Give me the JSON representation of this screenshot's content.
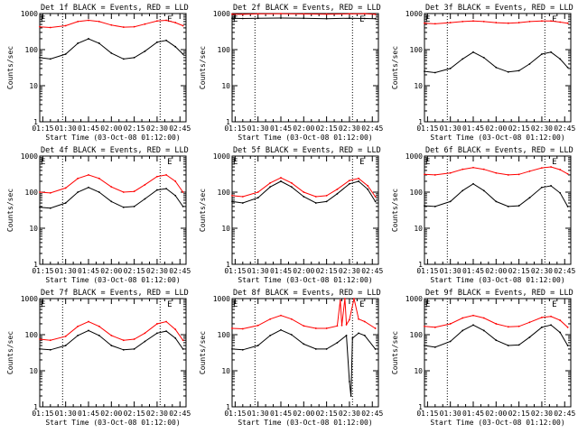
{
  "colors": {
    "events": "#000000",
    "lld": "#ff0000",
    "axis": "#000000",
    "marker": "#000000"
  },
  "chart_data": [
    {
      "type": "line",
      "title": "Det 1f BLACK = Events, RED = LLD",
      "xlabel": "Start Time (03-Oct-08 01:12:00)",
      "ylabel": "Counts/sec",
      "yscale": "log",
      "ylim": [
        1,
        1000
      ],
      "yticks": [
        "1",
        "10",
        "100",
        "1000"
      ],
      "xlim": [
        "01:13",
        "02:49"
      ],
      "xticks": [
        "01:15",
        "01:30",
        "01:45",
        "02:00",
        "02:15",
        "02:30",
        "02:45"
      ],
      "vlines": [
        "01:28",
        "02:32"
      ],
      "markers": [
        {
          "x": "01:13",
          "label": "E"
        },
        {
          "x": "02:36",
          "label": "E"
        }
      ],
      "series": [
        {
          "color": "black",
          "x": [
            "01:13",
            "01:20",
            "01:30",
            "01:38",
            "01:45",
            "01:52",
            "02:00",
            "02:08",
            "02:15",
            "02:22",
            "02:30",
            "02:36",
            "02:42",
            "02:47"
          ],
          "values": [
            60,
            55,
            75,
            150,
            200,
            150,
            80,
            55,
            60,
            90,
            160,
            180,
            120,
            75
          ]
        },
        {
          "color": "red",
          "x": [
            "01:13",
            "01:20",
            "01:30",
            "01:38",
            "01:45",
            "01:52",
            "02:00",
            "02:08",
            "02:15",
            "02:22",
            "02:30",
            "02:36",
            "02:42",
            "02:47"
          ],
          "values": [
            430,
            410,
            460,
            600,
            650,
            600,
            480,
            420,
            430,
            510,
            620,
            650,
            560,
            460
          ]
        }
      ]
    },
    {
      "type": "line",
      "title": "Det 2f BLACK = Events, RED = LLD",
      "xlabel": "Start Time (03-Oct-08 01:12:00)",
      "ylabel": "Counts/sec",
      "yscale": "log",
      "ylim": [
        1,
        1000
      ],
      "yticks": [
        "1",
        "10",
        "100",
        "1000"
      ],
      "xlim": [
        "01:13",
        "02:49"
      ],
      "xticks": [
        "01:15",
        "01:30",
        "01:45",
        "02:00",
        "02:15",
        "02:30",
        "02:45"
      ],
      "vlines": [
        "01:28",
        "02:32"
      ],
      "markers": [
        {
          "x": "01:13",
          "label": "E"
        },
        {
          "x": "02:36",
          "label": "E"
        }
      ],
      "series": [
        {
          "color": "black",
          "x": [
            "01:13",
            "01:20",
            "01:30",
            "01:45",
            "02:00",
            "02:15",
            "02:30",
            "02:40",
            "02:47"
          ],
          "values": [
            740,
            730,
            740,
            750,
            740,
            720,
            740,
            730,
            720
          ]
        },
        {
          "color": "red",
          "x": [
            "01:13",
            "01:20",
            "01:30",
            "01:45",
            "02:00",
            "02:15",
            "02:30",
            "02:40",
            "02:47"
          ],
          "values": [
            960,
            950,
            980,
            990,
            970,
            960,
            980,
            990,
            950
          ]
        }
      ]
    },
    {
      "type": "line",
      "title": "Det 3f BLACK = Events, RED = LLD",
      "xlabel": "Start Time (03-Oct-08 01:12:00)",
      "ylabel": "Counts/sec",
      "yscale": "log",
      "ylim": [
        1,
        1000
      ],
      "yticks": [
        "1",
        "10",
        "100",
        "1000"
      ],
      "xlim": [
        "01:13",
        "02:49"
      ],
      "xticks": [
        "01:15",
        "01:30",
        "01:45",
        "02:00",
        "02:15",
        "02:30",
        "02:45"
      ],
      "vlines": [
        "01:28",
        "02:32"
      ],
      "markers": [
        {
          "x": "01:13",
          "label": "E"
        },
        {
          "x": "02:36",
          "label": "E"
        }
      ],
      "series": [
        {
          "color": "black",
          "x": [
            "01:13",
            "01:20",
            "01:30",
            "01:38",
            "01:45",
            "01:52",
            "02:00",
            "02:08",
            "02:15",
            "02:22",
            "02:30",
            "02:36",
            "02:42",
            "02:47"
          ],
          "values": [
            25,
            23,
            30,
            55,
            85,
            60,
            32,
            24,
            26,
            40,
            75,
            85,
            55,
            32
          ]
        },
        {
          "color": "red",
          "x": [
            "01:13",
            "01:20",
            "01:30",
            "01:38",
            "01:45",
            "01:52",
            "02:00",
            "02:08",
            "02:15",
            "02:22",
            "02:30",
            "02:36",
            "02:42",
            "02:47"
          ],
          "values": [
            540,
            520,
            560,
            600,
            620,
            600,
            560,
            540,
            560,
            600,
            620,
            620,
            580,
            540
          ]
        }
      ]
    },
    {
      "type": "line",
      "title": "Det 4f BLACK = Events, RED = LLD",
      "xlabel": "Start Time (03-Oct-08 01:12:00)",
      "ylabel": "Counts/sec",
      "yscale": "log",
      "ylim": [
        1,
        1000
      ],
      "yticks": [
        "1",
        "10",
        "100",
        "1000"
      ],
      "xlim": [
        "01:13",
        "02:49"
      ],
      "xticks": [
        "01:15",
        "01:30",
        "01:45",
        "02:00",
        "02:15",
        "02:30",
        "02:45"
      ],
      "vlines": [
        "01:28",
        "02:32"
      ],
      "markers": [
        {
          "x": "01:13",
          "label": "E"
        },
        {
          "x": "02:36",
          "label": "E"
        }
      ],
      "series": [
        {
          "color": "black",
          "x": [
            "01:13",
            "01:20",
            "01:30",
            "01:38",
            "01:45",
            "01:52",
            "02:00",
            "02:08",
            "02:15",
            "02:22",
            "02:30",
            "02:36",
            "02:42",
            "02:47"
          ],
          "values": [
            38,
            36,
            50,
            100,
            135,
            100,
            55,
            38,
            40,
            65,
            115,
            125,
            80,
            40
          ]
        },
        {
          "color": "red",
          "x": [
            "01:13",
            "01:20",
            "01:30",
            "01:38",
            "01:45",
            "01:52",
            "02:00",
            "02:08",
            "02:15",
            "02:22",
            "02:30",
            "02:36",
            "02:42",
            "02:47"
          ],
          "values": [
            100,
            95,
            130,
            240,
            300,
            240,
            140,
            100,
            105,
            160,
            270,
            300,
            200,
            100
          ]
        }
      ]
    },
    {
      "type": "line",
      "title": "Det 5f BLACK = Events, RED = LLD",
      "xlabel": "Start Time (03-Oct-08 01:12:00)",
      "ylabel": "Counts/sec",
      "yscale": "log",
      "ylim": [
        1,
        1000
      ],
      "yticks": [
        "1",
        "10",
        "100",
        "1000"
      ],
      "xlim": [
        "01:13",
        "02:49"
      ],
      "xticks": [
        "01:15",
        "01:30",
        "01:45",
        "02:00",
        "02:15",
        "02:30",
        "02:45"
      ],
      "vlines": [
        "01:28",
        "02:32"
      ],
      "markers": [
        {
          "x": "01:13",
          "label": "E"
        },
        {
          "x": "02:36",
          "label": "E"
        }
      ],
      "series": [
        {
          "color": "black",
          "x": [
            "01:13",
            "01:20",
            "01:30",
            "01:38",
            "01:45",
            "01:52",
            "02:00",
            "02:08",
            "02:15",
            "02:22",
            "02:30",
            "02:36",
            "02:42",
            "02:47"
          ],
          "values": [
            55,
            50,
            70,
            140,
            200,
            140,
            75,
            50,
            55,
            90,
            170,
            200,
            120,
            55
          ]
        },
        {
          "color": "red",
          "x": [
            "01:13",
            "01:20",
            "01:30",
            "01:38",
            "01:45",
            "01:52",
            "02:00",
            "02:08",
            "02:15",
            "02:22",
            "02:30",
            "02:36",
            "02:42",
            "02:47"
          ],
          "values": [
            80,
            75,
            100,
            180,
            250,
            180,
            100,
            75,
            80,
            120,
            210,
            240,
            150,
            75
          ]
        }
      ]
    },
    {
      "type": "line",
      "title": "Det 6f BLACK = Events, RED = LLD",
      "xlabel": "Start Time (03-Oct-08 01:12:00)",
      "ylabel": "Counts/sec",
      "yscale": "log",
      "ylim": [
        1,
        1000
      ],
      "yticks": [
        "1",
        "10",
        "100",
        "1000"
      ],
      "xlim": [
        "01:13",
        "02:49"
      ],
      "xticks": [
        "01:15",
        "01:30",
        "01:45",
        "02:00",
        "02:15",
        "02:30",
        "02:45"
      ],
      "vlines": [
        "01:28",
        "02:32"
      ],
      "markers": [
        {
          "x": "01:13",
          "label": "E"
        },
        {
          "x": "02:36",
          "label": "E"
        }
      ],
      "series": [
        {
          "color": "black",
          "x": [
            "01:13",
            "01:20",
            "01:30",
            "01:38",
            "01:45",
            "01:52",
            "02:00",
            "02:08",
            "02:15",
            "02:22",
            "02:30",
            "02:36",
            "02:42",
            "02:47"
          ],
          "values": [
            42,
            40,
            55,
            110,
            170,
            110,
            55,
            40,
            42,
            70,
            135,
            150,
            95,
            40
          ]
        },
        {
          "color": "red",
          "x": [
            "01:13",
            "01:20",
            "01:30",
            "01:38",
            "01:45",
            "01:52",
            "02:00",
            "02:08",
            "02:15",
            "02:22",
            "02:30",
            "02:36",
            "02:42",
            "02:47"
          ],
          "values": [
            310,
            300,
            340,
            430,
            480,
            430,
            340,
            300,
            310,
            380,
            470,
            500,
            420,
            320
          ]
        }
      ]
    },
    {
      "type": "line",
      "title": "Det 7f BLACK = Events, RED = LLD",
      "xlabel": "Start Time (03-Oct-08 01:12:00)",
      "ylabel": "Counts/sec",
      "yscale": "log",
      "ylim": [
        1,
        1000
      ],
      "yticks": [
        "1",
        "10",
        "100",
        "1000"
      ],
      "xlim": [
        "01:13",
        "02:49"
      ],
      "xticks": [
        "01:15",
        "01:30",
        "01:45",
        "02:00",
        "02:15",
        "02:30",
        "02:45"
      ],
      "vlines": [
        "01:28",
        "02:32"
      ],
      "markers": [
        {
          "x": "01:13",
          "label": "E"
        },
        {
          "x": "02:36",
          "label": "E"
        }
      ],
      "series": [
        {
          "color": "black",
          "x": [
            "01:13",
            "01:20",
            "01:30",
            "01:38",
            "01:45",
            "01:52",
            "02:00",
            "02:08",
            "02:15",
            "02:22",
            "02:30",
            "02:36",
            "02:42",
            "02:47"
          ],
          "values": [
            40,
            38,
            50,
            95,
            130,
            95,
            50,
            38,
            40,
            65,
            110,
            125,
            80,
            40
          ]
        },
        {
          "color": "red",
          "x": [
            "01:13",
            "01:20",
            "01:30",
            "01:38",
            "01:45",
            "01:52",
            "02:00",
            "02:08",
            "02:15",
            "02:22",
            "02:30",
            "02:36",
            "02:42",
            "02:47"
          ],
          "values": [
            75,
            70,
            90,
            170,
            230,
            170,
            95,
            70,
            75,
            110,
            200,
            230,
            140,
            70
          ]
        }
      ]
    },
    {
      "type": "line",
      "title": "Det 8f BLACK = Events, RED = LLD",
      "xlabel": "Start Time (03-Oct-08 01:12:00)",
      "ylabel": "Counts/sec",
      "yscale": "log",
      "ylim": [
        1,
        1000
      ],
      "yticks": [
        "1",
        "10",
        "100",
        "1000"
      ],
      "xlim": [
        "01:13",
        "02:49"
      ],
      "xticks": [
        "01:15",
        "01:30",
        "01:45",
        "02:00",
        "02:15",
        "02:30",
        "02:45"
      ],
      "vlines": [
        "01:28",
        "02:32"
      ],
      "markers": [
        {
          "x": "01:13",
          "label": "E"
        },
        {
          "x": "02:36",
          "label": "E"
        }
      ],
      "series": [
        {
          "color": "black",
          "x": [
            "01:13",
            "01:20",
            "01:30",
            "01:38",
            "01:45",
            "01:52",
            "02:00",
            "02:08",
            "02:15",
            "02:22",
            "02:28",
            "02:30",
            "02:31",
            "02:32",
            "02:36",
            "02:40",
            "02:47"
          ],
          "values": [
            40,
            38,
            50,
            95,
            135,
            100,
            55,
            40,
            40,
            60,
            95,
            5,
            2,
            80,
            110,
            95,
            40
          ]
        },
        {
          "color": "red",
          "x": [
            "01:13",
            "01:20",
            "01:30",
            "01:38",
            "01:45",
            "01:52",
            "02:00",
            "02:08",
            "02:15",
            "02:22",
            "02:24",
            "02:25",
            "02:27",
            "02:28",
            "02:30",
            "02:33",
            "02:36",
            "02:40",
            "02:47"
          ],
          "values": [
            150,
            145,
            180,
            270,
            340,
            270,
            175,
            150,
            150,
            175,
            900,
            180,
            1000,
            190,
            260,
            1000,
            270,
            230,
            150
          ]
        }
      ]
    },
    {
      "type": "line",
      "title": "Det 9f BLACK = Events, RED = LLD",
      "xlabel": "Start Time (03-Oct-08 01:12:00)",
      "ylabel": "Counts/sec",
      "yscale": "log",
      "ylim": [
        1,
        1000
      ],
      "yticks": [
        "1",
        "10",
        "100",
        "1000"
      ],
      "xlim": [
        "01:13",
        "02:49"
      ],
      "xticks": [
        "01:15",
        "01:30",
        "01:45",
        "02:00",
        "02:15",
        "02:30",
        "02:45"
      ],
      "vlines": [
        "01:28",
        "02:32"
      ],
      "markers": [
        {
          "x": "01:13",
          "label": "E"
        },
        {
          "x": "02:36",
          "label": "E"
        }
      ],
      "series": [
        {
          "color": "black",
          "x": [
            "01:13",
            "01:20",
            "01:30",
            "01:38",
            "01:45",
            "01:52",
            "02:00",
            "02:08",
            "02:15",
            "02:22",
            "02:30",
            "02:36",
            "02:42",
            "02:47"
          ],
          "values": [
            50,
            45,
            65,
            130,
            185,
            130,
            70,
            50,
            52,
            85,
            160,
            185,
            115,
            50
          ]
        },
        {
          "color": "red",
          "x": [
            "01:13",
            "01:20",
            "01:30",
            "01:38",
            "01:45",
            "01:52",
            "02:00",
            "02:08",
            "02:15",
            "02:22",
            "02:30",
            "02:36",
            "02:42",
            "02:47"
          ],
          "values": [
            170,
            160,
            200,
            290,
            340,
            290,
            200,
            165,
            170,
            220,
            300,
            320,
            250,
            160
          ]
        }
      ]
    }
  ]
}
